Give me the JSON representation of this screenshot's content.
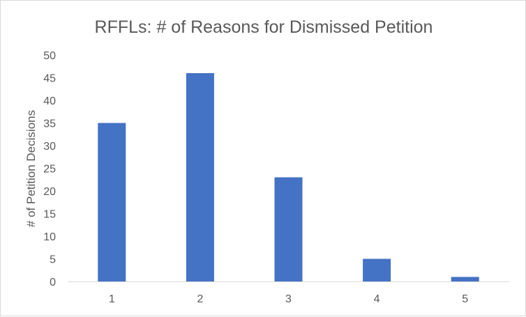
{
  "chart_data": {
    "type": "bar",
    "title": "RFFLs: # of Reasons for Dismissed Petition",
    "xlabel": "",
    "ylabel": "# of Petition Decisions",
    "categories": [
      "1",
      "2",
      "3",
      "4",
      "5"
    ],
    "values": [
      35,
      46,
      23,
      5,
      1
    ],
    "ylim": [
      0,
      50
    ],
    "yticks": [
      "0",
      "5",
      "10",
      "15",
      "20",
      "25",
      "30",
      "35",
      "40",
      "45",
      "50"
    ],
    "grid": false,
    "legend": "none",
    "bar_color": "#4472c4"
  }
}
